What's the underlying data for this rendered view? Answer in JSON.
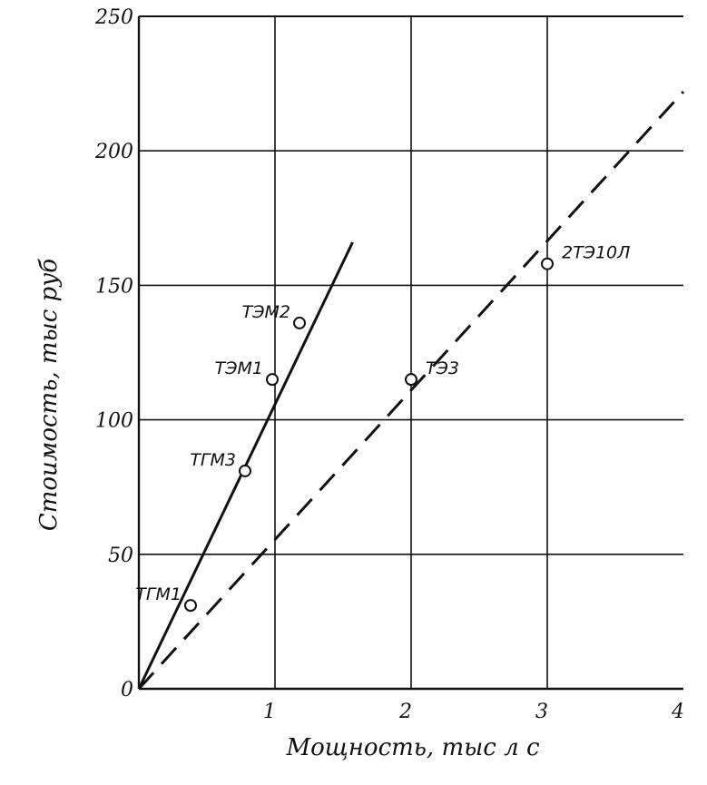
{
  "chart_data": {
    "type": "scatter",
    "xlabel": "Мощность, тыс л с",
    "ylabel": "Стоимость, тыс руб",
    "xlim": [
      0,
      4
    ],
    "ylim": [
      0,
      250
    ],
    "grid": true,
    "x_ticks": [
      {
        "value": 1,
        "label": "1"
      },
      {
        "value": 2,
        "label": "2"
      },
      {
        "value": 3,
        "label": "3"
      },
      {
        "value": 4,
        "label": "4"
      }
    ],
    "y_ticks": [
      {
        "value": 0,
        "label": "0"
      },
      {
        "value": 50,
        "label": "50"
      },
      {
        "value": 100,
        "label": "100"
      },
      {
        "value": 150,
        "label": "150"
      },
      {
        "value": 200,
        "label": "200"
      },
      {
        "value": 250,
        "label": "250"
      }
    ],
    "points": [
      {
        "label": "ТГМ1",
        "x": 0.38,
        "y": 31,
        "label_side": "left"
      },
      {
        "label": "ТГМ3",
        "x": 0.78,
        "y": 81,
        "label_side": "left"
      },
      {
        "label": "ТЭМ1",
        "x": 0.98,
        "y": 115,
        "label_side": "left"
      },
      {
        "label": "ТЭМ2",
        "x": 1.18,
        "y": 136,
        "label_side": "left"
      },
      {
        "label": "ТЭ3",
        "x": 2.0,
        "y": 115,
        "label_side": "right"
      },
      {
        "label": "2ТЭ10Л",
        "x": 3.0,
        "y": 158,
        "label_side": "right"
      }
    ],
    "lines": [
      {
        "style": "solid",
        "x": [
          0,
          1.57
        ],
        "y": [
          0,
          166
        ]
      },
      {
        "style": "dashed",
        "x": [
          0,
          4
        ],
        "y": [
          0,
          222
        ]
      }
    ],
    "colors": {
      "ink": "#111111",
      "background": "#ffffff"
    }
  }
}
